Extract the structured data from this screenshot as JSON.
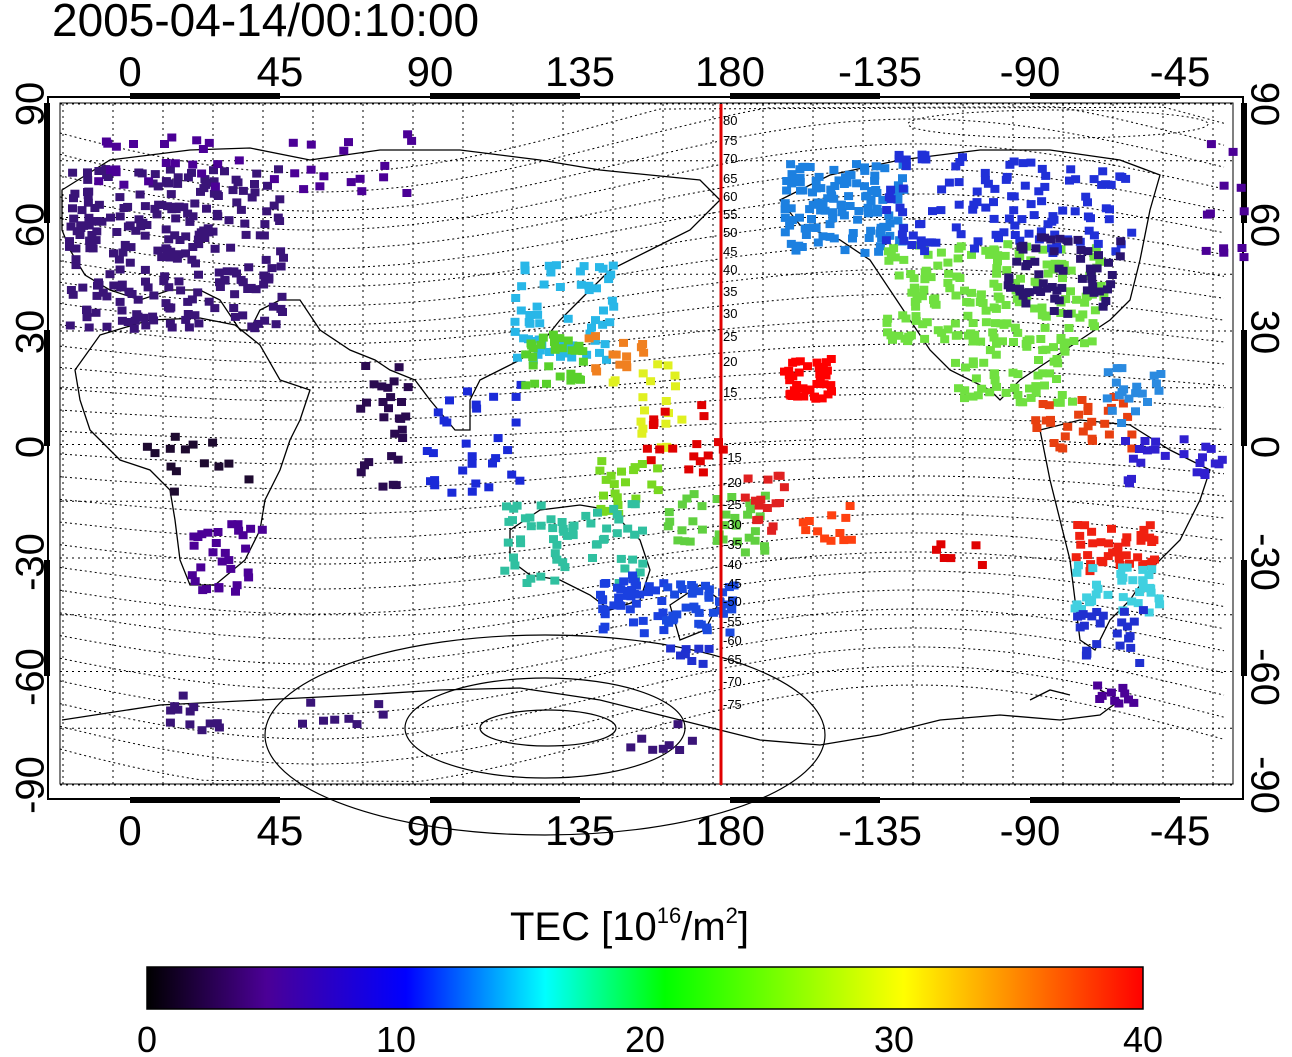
{
  "title": "2005-04-14/00:10:00",
  "lon_ticks": [
    "0",
    "45",
    "90",
    "135",
    "180",
    "-135",
    "-90",
    "-45"
  ],
  "lat_ticks": [
    "90",
    "60",
    "30",
    "0",
    "-30",
    "-60",
    "-90"
  ],
  "meridian_labels": [
    "80",
    "75",
    "70",
    "65",
    "60",
    "55",
    "50",
    "45",
    "40",
    "35",
    "30",
    "25",
    "20",
    "15",
    "-15",
    "-20",
    "-25",
    "-30",
    "-35",
    "-40",
    "-45",
    "-50",
    "-55",
    "-60",
    "-65",
    "-70",
    "-75"
  ],
  "colorbar": {
    "title_prefix": "TEC  [10",
    "title_sup1": "16",
    "title_mid": "/m",
    "title_sup2": "2",
    "title_suffix": "]",
    "tick_labels": [
      "0",
      "10",
      "20",
      "30",
      "40"
    ],
    "colors": [
      "#000000",
      "#4b0096",
      "#0000ff",
      "#00ffff",
      "#00ff00",
      "#ffff00",
      "#ff8000",
      "#ff0000"
    ]
  },
  "colors": {
    "meridian_line": "#e00000",
    "frame": "#000000"
  }
}
